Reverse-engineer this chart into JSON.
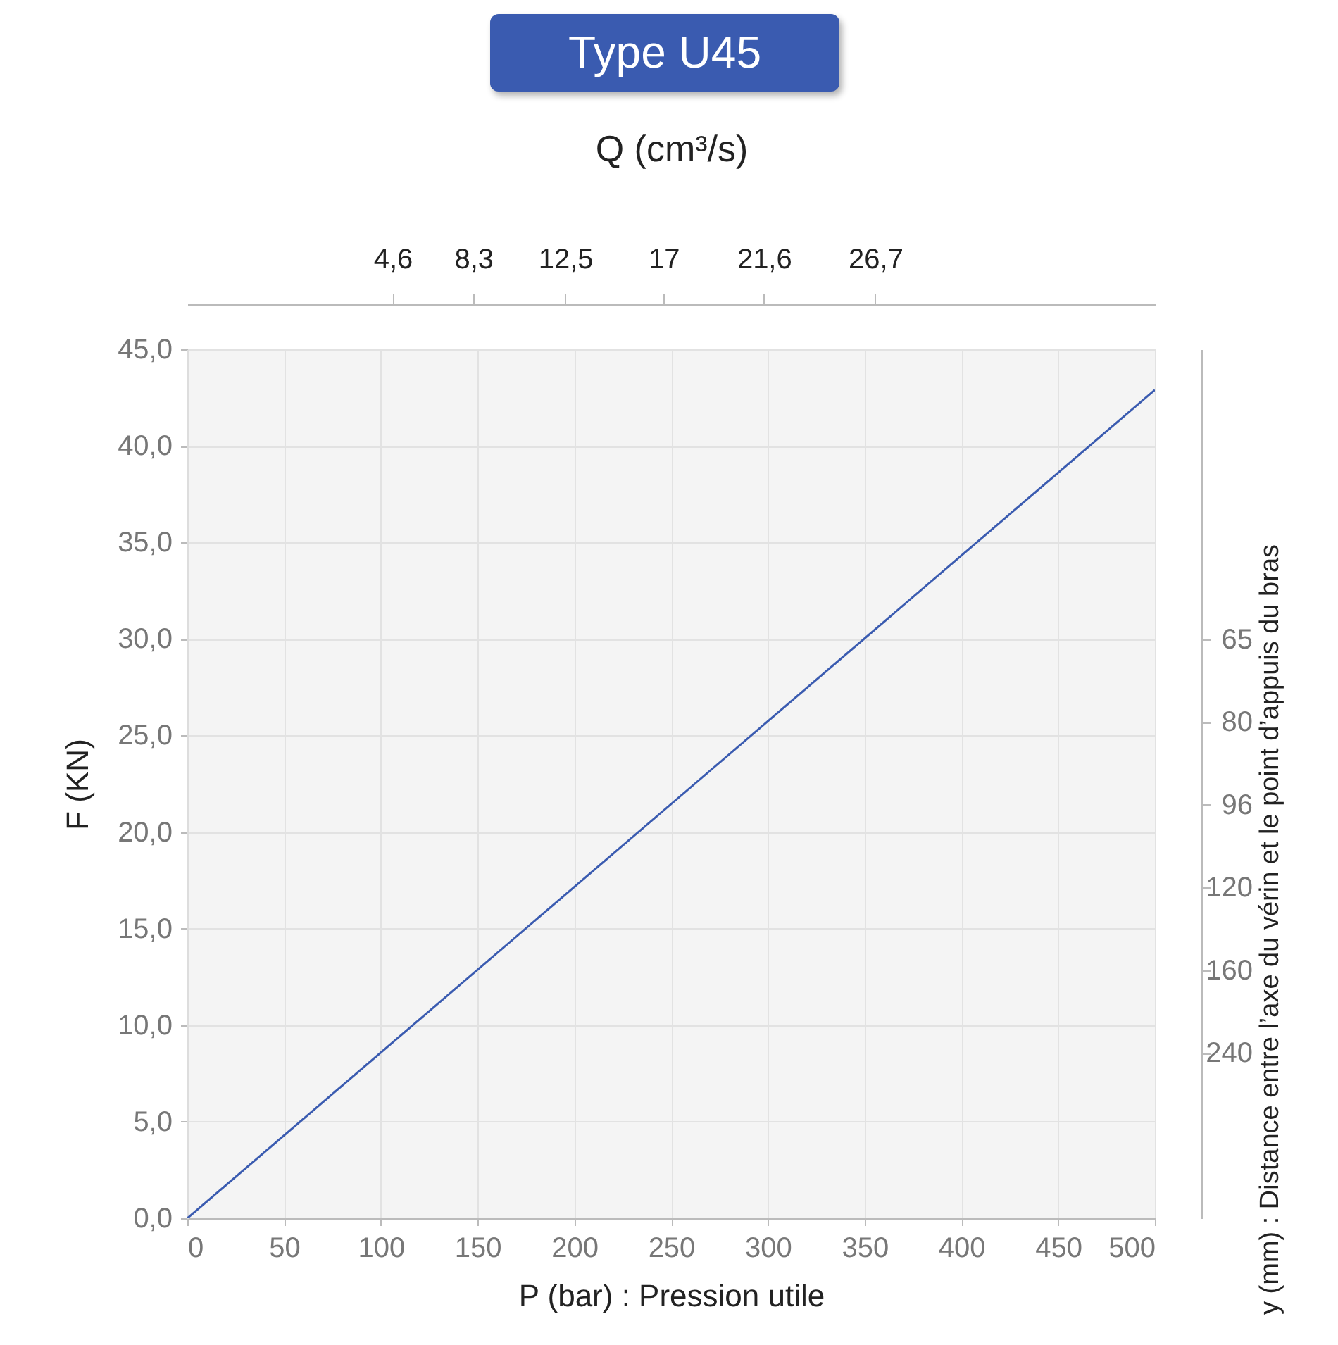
{
  "chart_data": {
    "type": "line",
    "title": "Type U45",
    "xlabel": "P (bar) : Pression utile",
    "ylabel": "F (KN)",
    "x2label": "Q (cm³/s)",
    "y2label": "y (mm) : Distance entre l’axe du vérin et le point d’appuis du bras",
    "x": [
      0,
      500
    ],
    "series": [
      {
        "color": "#3a5bb0",
        "values": [
          0,
          42.9
        ]
      }
    ],
    "xlim": [
      0,
      500
    ],
    "xticks": [
      0,
      50,
      100,
      150,
      200,
      250,
      300,
      350,
      400,
      450,
      500
    ],
    "ylim": [
      0,
      45
    ],
    "yticks": [
      {
        "value": 0,
        "label": "0,0"
      },
      {
        "value": 5,
        "label": "5,0"
      },
      {
        "value": 10,
        "label": "10,0"
      },
      {
        "value": 15,
        "label": "15,0"
      },
      {
        "value": 20,
        "label": "20,0"
      },
      {
        "value": 25,
        "label": "25,0"
      },
      {
        "value": 30,
        "label": "30,0"
      },
      {
        "value": 35,
        "label": "35,0"
      },
      {
        "value": 40,
        "label": "40,0"
      },
      {
        "value": 45,
        "label": "45,0"
      }
    ],
    "x2lim": [
      -4.8,
      39.5
    ],
    "x2ticks": [
      {
        "value": 4.6,
        "label": "4,6"
      },
      {
        "value": 8.3,
        "label": "8,3"
      },
      {
        "value": 12.5,
        "label": "12,5"
      },
      17,
      {
        "value": 21.6,
        "label": "21,6"
      },
      {
        "value": 26.7,
        "label": "26,7"
      }
    ],
    "y2_categories": [
      "65",
      "80",
      "96",
      "120",
      "160",
      "240",
      null,
      null
    ],
    "grid": true
  }
}
